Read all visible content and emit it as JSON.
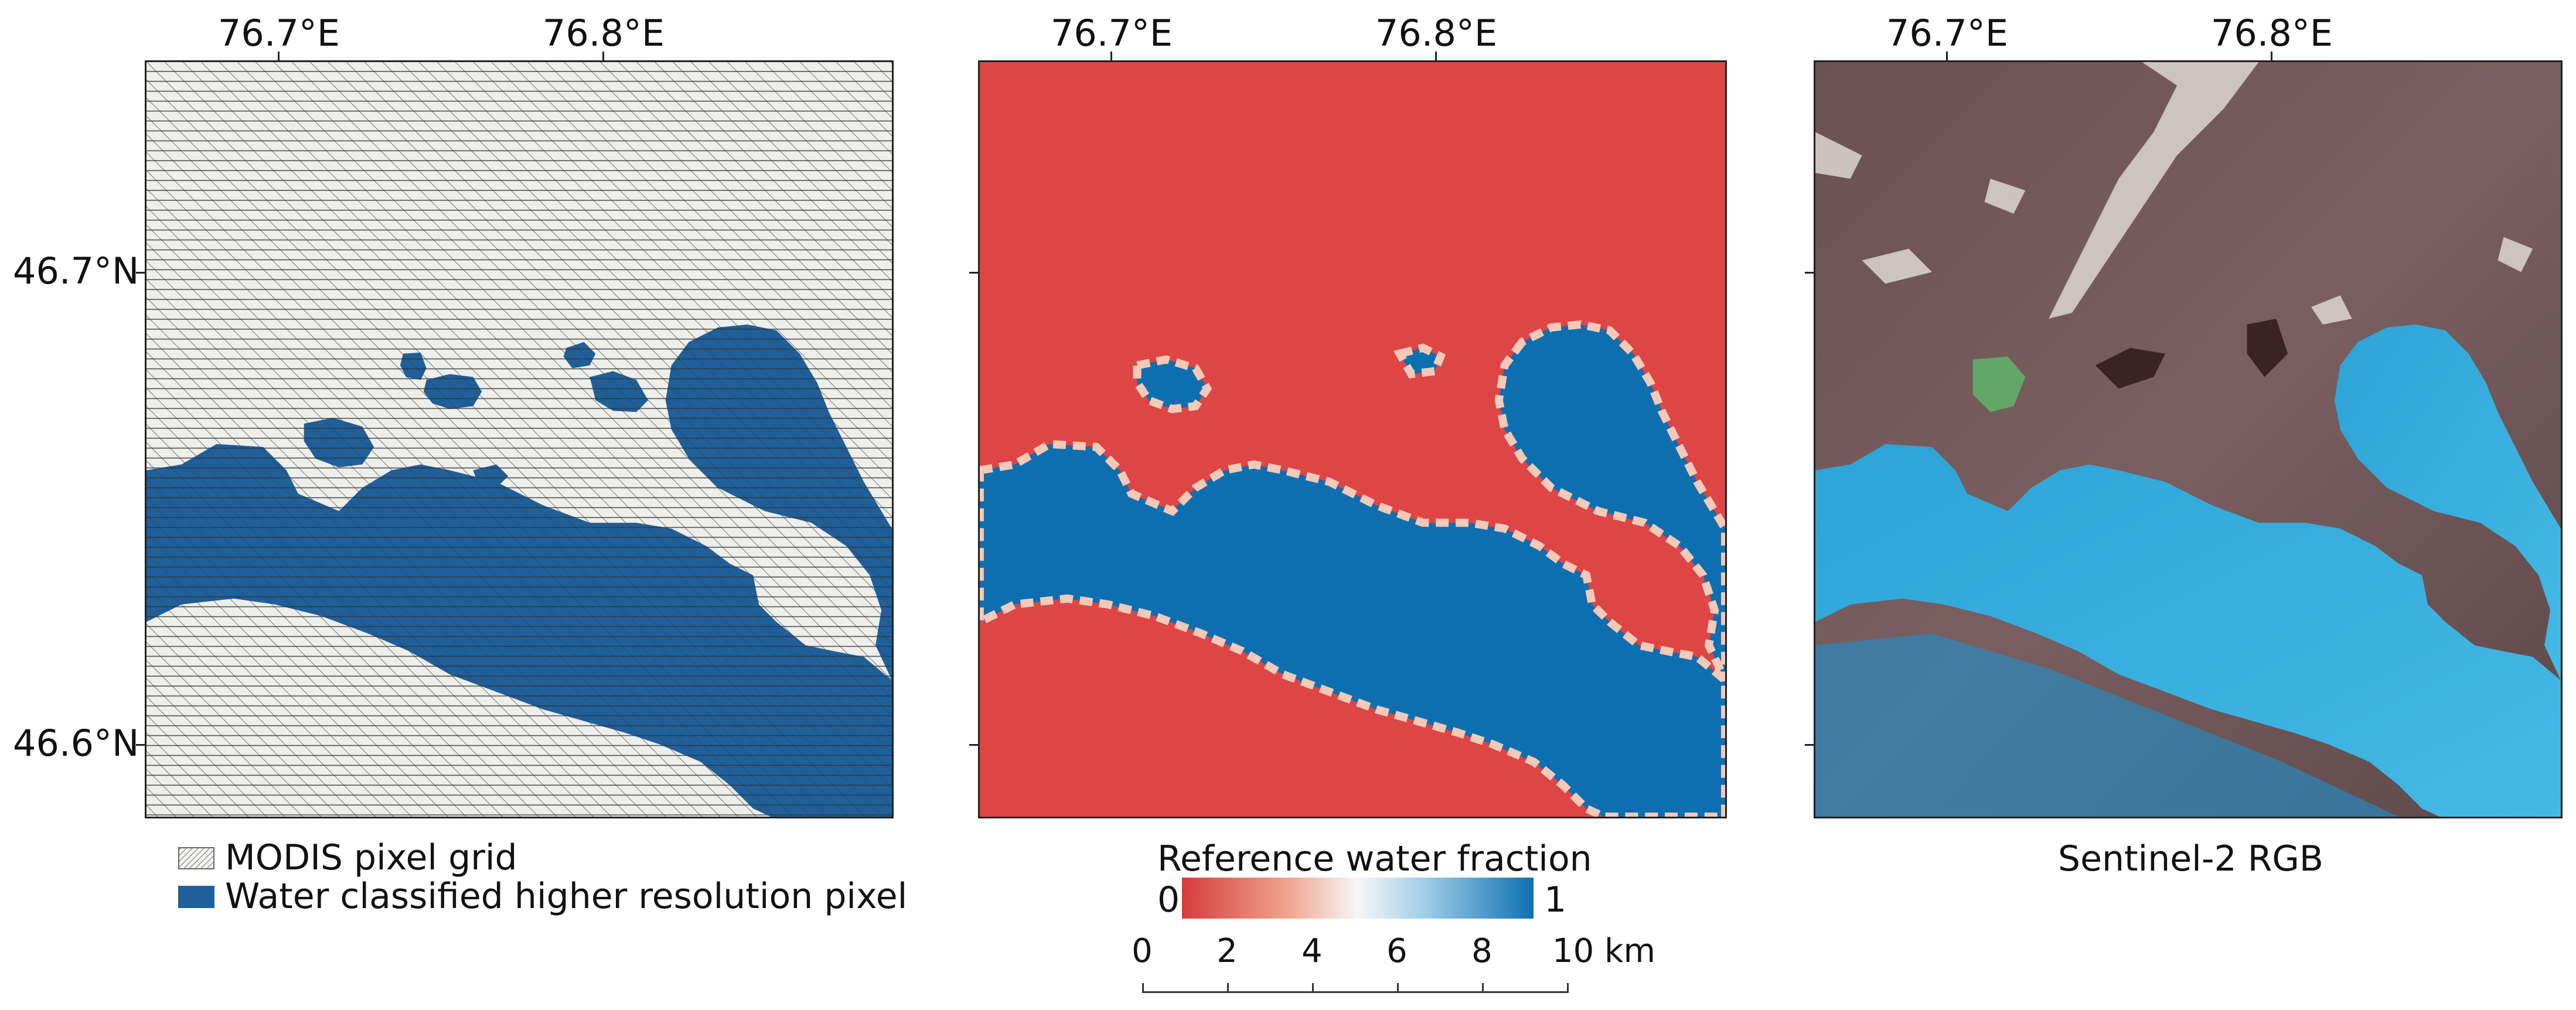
{
  "panels": {
    "lon_labels": [
      "76.7°E",
      "76.8°E"
    ],
    "lat_labels": [
      "46.7°N",
      "46.6°N"
    ]
  },
  "legend": {
    "grid_label": "MODIS pixel grid",
    "water_label": "Water classified higher resolution pixel",
    "water_color": "#1f5f9a"
  },
  "colorbar": {
    "title": "Reference water fraction",
    "min_label": "0",
    "max_label": "1",
    "colors": [
      "#d73c3c",
      "#f7f7f7",
      "#0e6fb0"
    ]
  },
  "scalebar": {
    "ticks": [
      "0",
      "2",
      "4",
      "6",
      "8",
      "10 km"
    ]
  },
  "rgb_panel": {
    "caption": "Sentinel-2 RGB"
  }
}
